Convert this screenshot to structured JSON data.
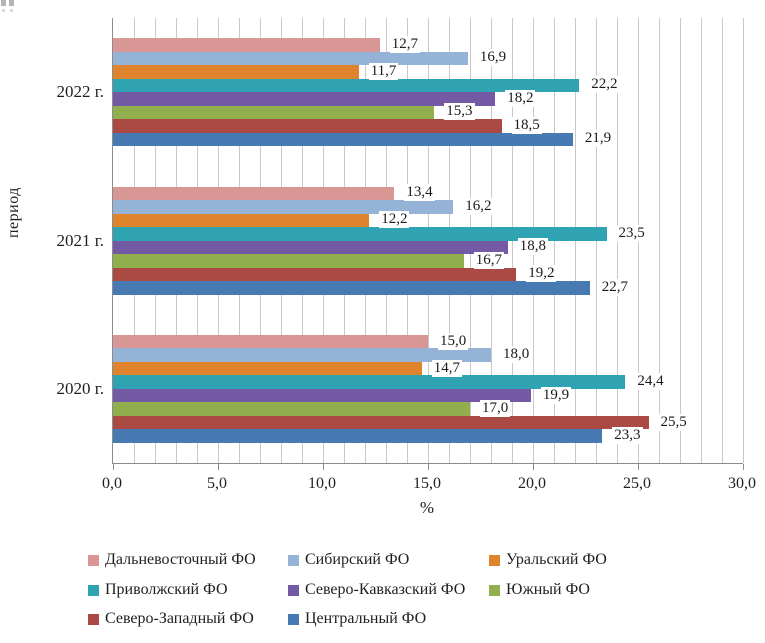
{
  "chart_data": {
    "type": "bar",
    "orientation": "horizontal",
    "title": "",
    "xlabel": "%",
    "ylabel": "период",
    "categories": [
      "2022 г.",
      "2021 г.",
      "2020 г."
    ],
    "series": [
      {
        "name": "Дальневосточный ФО",
        "color": "#D89694",
        "values": [
          12.7,
          13.4,
          15.0
        ]
      },
      {
        "name": "Сибирский ФО",
        "color": "#95B3D7",
        "values": [
          16.9,
          16.2,
          18.0
        ]
      },
      {
        "name": "Уральский ФО",
        "color": "#E0832D",
        "values": [
          11.7,
          12.2,
          14.7
        ]
      },
      {
        "name": "Приволжский ФО",
        "color": "#2FA3B1",
        "values": [
          22.2,
          23.5,
          24.4
        ]
      },
      {
        "name": "Северо-Кавказский ФО",
        "color": "#7459A4",
        "values": [
          18.2,
          18.8,
          19.9
        ]
      },
      {
        "name": "Южный ФО",
        "color": "#92AF4E",
        "values": [
          15.3,
          16.7,
          17.0
        ]
      },
      {
        "name": "Северо-Западный ФО",
        "color": "#AB4A44",
        "values": [
          18.5,
          19.2,
          25.5
        ]
      },
      {
        "name": "Центральный ФО",
        "color": "#4779B3",
        "values": [
          21.9,
          22.7,
          23.3
        ]
      }
    ],
    "xlim": [
      0,
      30
    ],
    "x_major_step": 5,
    "x_minor_step": 1,
    "x_tick_labels": [
      "0,0",
      "5,0",
      "10,0",
      "15,0",
      "20,0",
      "25,0",
      "30,0"
    ],
    "decimal_separator": ",",
    "grid": true,
    "data_labels": true,
    "legend_position": "bottom"
  }
}
